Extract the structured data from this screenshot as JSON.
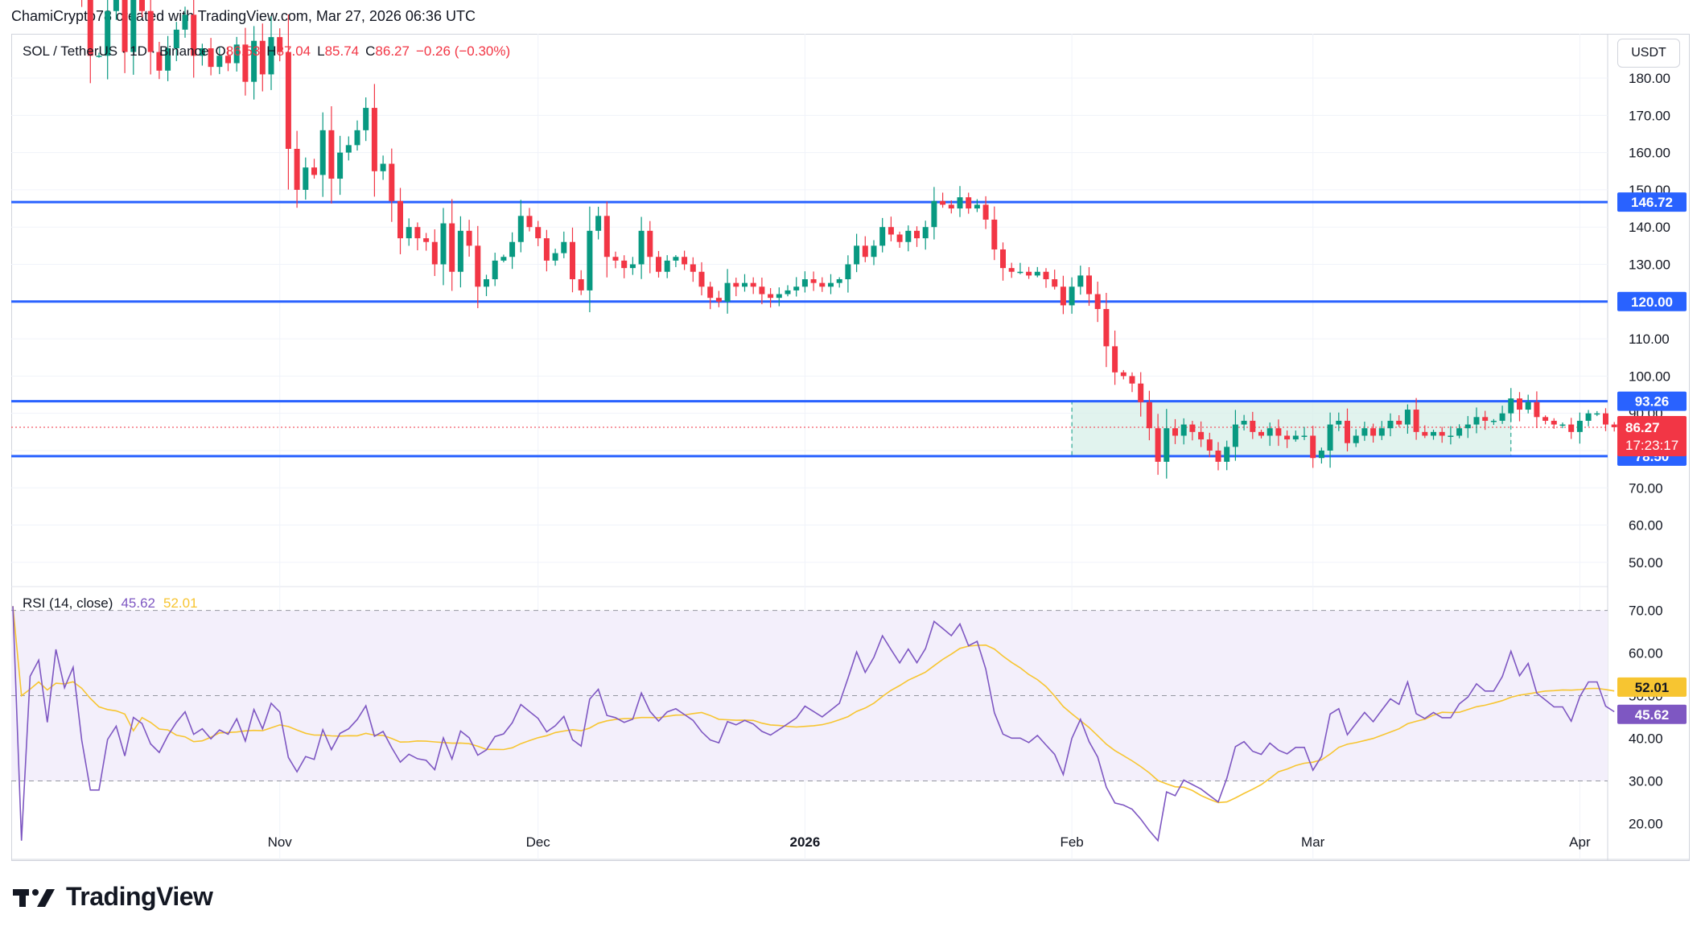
{
  "header": {
    "attribution": "ChamiCrypto78 created with TradingView.com, Mar 27, 2026 06:36 UTC"
  },
  "legend": {
    "symbol": "SOL / TetherUS · 1D · Binance",
    "open_label": "O",
    "open_value": "86.53",
    "high_label": "H",
    "high_value": "87.04",
    "low_label": "L",
    "low_value": "85.74",
    "close_label": "C",
    "close_value": "86.27",
    "change": "−0.26 (−0.30%)"
  },
  "currency_button": "USDT",
  "rsi_legend": {
    "title": "RSI (14, close)",
    "rsi_value": "45.62",
    "ma_value": "52.01"
  },
  "price_badges": {
    "level_146": "146.72",
    "level_120": "120.00",
    "level_93": "93.26",
    "current_price": "86.27",
    "countdown": "17:23:17",
    "level_78": "78.50"
  },
  "rsi_badges": {
    "ma": "52.01",
    "rsi": "45.62"
  },
  "footer": {
    "brand": "TradingView"
  },
  "colors": {
    "up": "#089981",
    "down": "#f23645",
    "level_line": "#2962ff",
    "rsi_line": "#7e57c2",
    "rsi_ma": "#f7c531",
    "range_fill": "#d7efe8",
    "rsi_band": "#f3effb"
  },
  "chart_data": [
    {
      "type": "candlestick",
      "title": "SOL / TetherUS · 1D · Binance",
      "ylim": [
        45,
        188
      ],
      "y_ticks": [
        "180.00",
        "170.00",
        "160.00",
        "150.00",
        "140.00",
        "130.00",
        "120.00",
        "110.00",
        "100.00",
        "90.00",
        "80.00",
        "70.00",
        "60.00",
        "50.00"
      ],
      "x_ticks": [
        "Nov",
        "Dec",
        "2026",
        "Feb",
        "Mar",
        "Apr"
      ],
      "horizontal_levels": [
        146.72,
        120.0,
        93.26,
        78.5
      ],
      "range_box": {
        "from": "2026-02-01",
        "to": "2026-03-24",
        "low": 78.5,
        "high": 93.26
      },
      "current_price": 86.27,
      "ohlc_start_date": "2025-10-01",
      "ohlc_start_close": 213,
      "closes": [
        213,
        208,
        214,
        215,
        211,
        218,
        214,
        217,
        204,
        186,
        186,
        198,
        202,
        187,
        201,
        198,
        187,
        182,
        188,
        193,
        197,
        186,
        188,
        183,
        186,
        184,
        189,
        179,
        190,
        181,
        191,
        187,
        161,
        150,
        156,
        154,
        166,
        153,
        160,
        162,
        166,
        172,
        155,
        157,
        147,
        137,
        140,
        137,
        136,
        130,
        141,
        128,
        139,
        135,
        124,
        126,
        131,
        132,
        136,
        143,
        140,
        137,
        131,
        133,
        136,
        126,
        123,
        139,
        143,
        132,
        131,
        129,
        130,
        139,
        132,
        128,
        131,
        132,
        130,
        128,
        124,
        121,
        120,
        125,
        124,
        125,
        124,
        122,
        121,
        122,
        123,
        124,
        126,
        125,
        124,
        125,
        126,
        130,
        135,
        132,
        135,
        140,
        138,
        136,
        139,
        137,
        140,
        147,
        146,
        145,
        148,
        145,
        146,
        142,
        134,
        129,
        128,
        128,
        127,
        128,
        126,
        124,
        119,
        124,
        127,
        122,
        118,
        108,
        101,
        100,
        98,
        93,
        86,
        77,
        86,
        84,
        87,
        85,
        83,
        80,
        77,
        81,
        87,
        88,
        85,
        84,
        86,
        84,
        83,
        84,
        84,
        78,
        80,
        87,
        88,
        82,
        84,
        86,
        84,
        86,
        88,
        87,
        91,
        85,
        84,
        85,
        84,
        84,
        86,
        87,
        89,
        88,
        88,
        90,
        94,
        91,
        93,
        89,
        88,
        87,
        87,
        85,
        88,
        90,
        90,
        87,
        86.27
      ]
    },
    {
      "type": "line",
      "title": "RSI (14, close)",
      "ylim": [
        15,
        72
      ],
      "y_ticks": [
        "70.00",
        "60.00",
        "50.00",
        "40.00",
        "30.00",
        "20.00"
      ],
      "reference_lines": [
        70,
        50,
        30
      ],
      "series": [
        {
          "name": "RSI",
          "last": 45.62
        },
        {
          "name": "RSI-based MA",
          "last": 52.01
        }
      ]
    }
  ]
}
